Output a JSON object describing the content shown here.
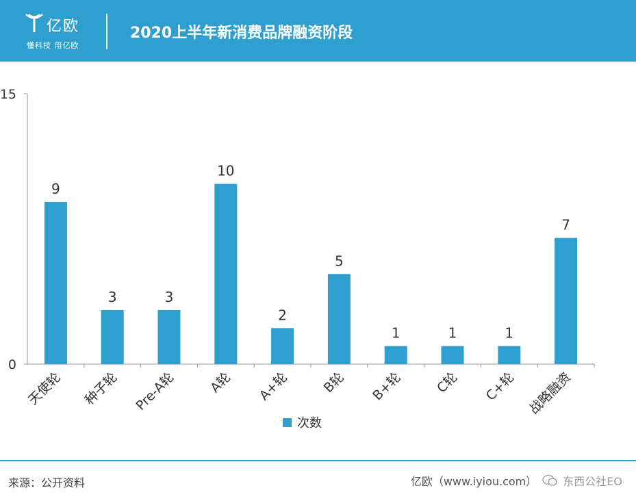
{
  "header": {
    "logo_name": "亿欧",
    "logo_slogan": "懂科技 用亿欧",
    "title": "2020上半年新消费品牌融资阶段"
  },
  "colors": {
    "accent": "#2e9fce",
    "bar": "#2e9fce"
  },
  "chart_data": {
    "type": "bar",
    "title": "2020上半年新消费品牌融资阶段",
    "categories": [
      "天使轮",
      "种子轮",
      "Pre-A轮",
      "A轮",
      "A+轮",
      "B轮",
      "B+轮",
      "C轮",
      "C+轮",
      "战略融资"
    ],
    "series": [
      {
        "name": "次数",
        "values": [
          9,
          3,
          3,
          10,
          2,
          5,
          1,
          1,
          1,
          7
        ]
      }
    ],
    "ylim": [
      0,
      15
    ],
    "yticks": [
      0,
      15
    ],
    "xlabel": "",
    "ylabel": "",
    "grid": false,
    "legend": "bottom-center"
  },
  "footer": {
    "source": "来源：公开资料",
    "credit": "亿欧（www.iyiou.com）",
    "watermark": "东西公社EO",
    "wechat_icon": "wechat-icon"
  }
}
